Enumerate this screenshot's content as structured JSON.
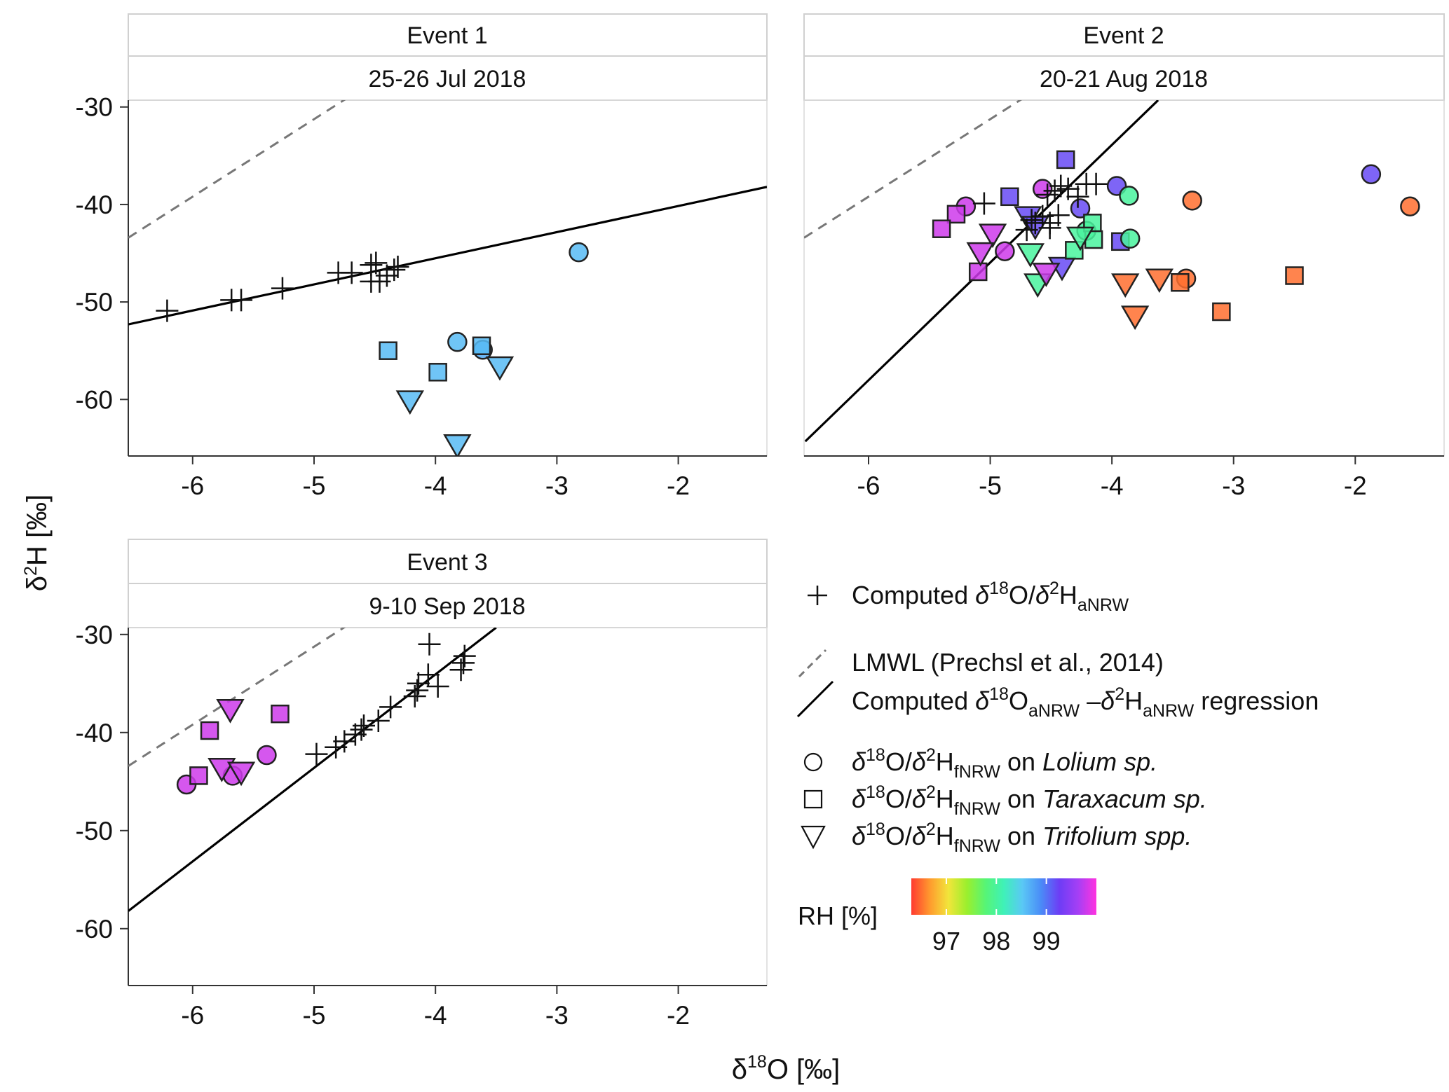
{
  "chart_data": {
    "type": "scatter",
    "xlabel": {
      "prefix": "δ",
      "sup": "18",
      "main": "O [‰]"
    },
    "ylabel": {
      "prefix": "δ",
      "sup": "2",
      "main": "H [‰]"
    },
    "xlim": [
      -6.53,
      -1.27
    ],
    "ylim": [
      -65.8,
      -29.3
    ],
    "xticks": [
      -6,
      -5,
      -4,
      -3,
      -2
    ],
    "yticks": [
      -30,
      -40,
      -50,
      -60
    ],
    "grid": false,
    "lmwl": {
      "slope": 7.95,
      "intercept": 8.5
    },
    "panels": [
      {
        "title": "Event 1",
        "date": "25-26 Jul 2018",
        "regression": {
          "x": [
            -6.53,
            -1.27
          ],
          "y": [
            -52.3,
            -38.2
          ]
        },
        "computed": [
          [
            -6.21,
            -50.9
          ],
          [
            -5.68,
            -49.8
          ],
          [
            -5.6,
            -49.8
          ],
          [
            -5.26,
            -48.6
          ],
          [
            -4.8,
            -47.0
          ],
          [
            -4.69,
            -47.0
          ],
          [
            -4.53,
            -46.2
          ],
          [
            -4.49,
            -46.0
          ],
          [
            -4.53,
            -47.9
          ],
          [
            -4.46,
            -47.9
          ],
          [
            -4.4,
            -47.3
          ],
          [
            -4.34,
            -46.7
          ],
          [
            -4.31,
            -46.4
          ]
        ],
        "observed": [
          {
            "species": "Lolium",
            "x": -2.82,
            "y": -44.9,
            "rh": 98.6
          },
          {
            "species": "Lolium",
            "x": -3.82,
            "y": -54.1,
            "rh": 98.6
          },
          {
            "species": "Lolium",
            "x": -3.61,
            "y": -54.9,
            "rh": 98.7
          },
          {
            "species": "Taraxacum",
            "x": -4.39,
            "y": -55.0,
            "rh": 98.6
          },
          {
            "species": "Taraxacum",
            "x": -3.62,
            "y": -54.5,
            "rh": 98.6
          },
          {
            "species": "Taraxacum",
            "x": -3.98,
            "y": -57.2,
            "rh": 98.6
          },
          {
            "species": "Trifolium",
            "x": -4.21,
            "y": -60.1,
            "rh": 98.6
          },
          {
            "species": "Trifolium",
            "x": -3.47,
            "y": -56.6,
            "rh": 98.6
          },
          {
            "species": "Trifolium",
            "x": -3.82,
            "y": -64.6,
            "rh": 98.6
          }
        ]
      },
      {
        "title": "Event 2",
        "date": "20-21 Aug 2018",
        "regression": {
          "x": [
            -6.52,
            -3.62
          ],
          "y": [
            -64.3,
            -29.3
          ]
        },
        "computed": [
          [
            -5.05,
            -39.9
          ],
          [
            -4.7,
            -42.6
          ],
          [
            -4.66,
            -41.6
          ],
          [
            -4.63,
            -41.9
          ],
          [
            -4.57,
            -41.2
          ],
          [
            -4.51,
            -41.9
          ],
          [
            -4.44,
            -41.1
          ],
          [
            -4.53,
            -39.0
          ],
          [
            -4.47,
            -38.6
          ],
          [
            -4.42,
            -38.1
          ],
          [
            -4.36,
            -38.4
          ],
          [
            -4.21,
            -37.9
          ],
          [
            -4.13,
            -37.9
          ],
          [
            -4.28,
            -39.2
          ],
          [
            -4.51,
            -42.4
          ]
        ],
        "observed": [
          {
            "species": "Lolium",
            "x": -3.34,
            "y": -39.6,
            "rh": 96.5
          },
          {
            "species": "Lolium",
            "x": -1.55,
            "y": -40.2,
            "rh": 96.5
          },
          {
            "species": "Lolium",
            "x": -3.39,
            "y": -47.6,
            "rh": 96.5
          },
          {
            "species": "Taraxacum",
            "x": -3.44,
            "y": -48.0,
            "rh": 96.5
          },
          {
            "species": "Taraxacum",
            "x": -2.5,
            "y": -47.3,
            "rh": 96.5
          },
          {
            "species": "Taraxacum",
            "x": -3.1,
            "y": -51.0,
            "rh": 96.5
          },
          {
            "species": "Trifolium",
            "x": -3.89,
            "y": -48.1,
            "rh": 96.5
          },
          {
            "species": "Trifolium",
            "x": -3.61,
            "y": -47.6,
            "rh": 96.5
          },
          {
            "species": "Trifolium",
            "x": -3.81,
            "y": -51.4,
            "rh": 96.5
          },
          {
            "species": "Lolium",
            "x": -1.87,
            "y": -36.9,
            "rh": 99.2
          },
          {
            "species": "Lolium",
            "x": -3.96,
            "y": -38.1,
            "rh": 99.2
          },
          {
            "species": "Lolium",
            "x": -4.26,
            "y": -40.4,
            "rh": 99.2
          },
          {
            "species": "Taraxacum",
            "x": -4.38,
            "y": -35.4,
            "rh": 99.2
          },
          {
            "species": "Taraxacum",
            "x": -4.84,
            "y": -39.2,
            "rh": 99.2
          },
          {
            "species": "Taraxacum",
            "x": -3.93,
            "y": -43.8,
            "rh": 99.2
          },
          {
            "species": "Trifolium",
            "x": -4.69,
            "y": -41.2,
            "rh": 99.2
          },
          {
            "species": "Trifolium",
            "x": -4.63,
            "y": -42.2,
            "rh": 99.2
          },
          {
            "species": "Trifolium",
            "x": -4.41,
            "y": -46.4,
            "rh": 99.2
          },
          {
            "species": "Lolium",
            "x": -3.86,
            "y": -39.1,
            "rh": 98.0
          },
          {
            "species": "Lolium",
            "x": -4.21,
            "y": -42.7,
            "rh": 98.0
          },
          {
            "species": "Lolium",
            "x": -3.85,
            "y": -43.5,
            "rh": 98.0
          },
          {
            "species": "Taraxacum",
            "x": -4.16,
            "y": -41.9,
            "rh": 98.0
          },
          {
            "species": "Taraxacum",
            "x": -4.15,
            "y": -43.6,
            "rh": 98.0
          },
          {
            "species": "Taraxacum",
            "x": -4.31,
            "y": -44.7,
            "rh": 98.0
          },
          {
            "species": "Trifolium",
            "x": -4.67,
            "y": -45.0,
            "rh": 98.0
          },
          {
            "species": "Trifolium",
            "x": -4.61,
            "y": -48.1,
            "rh": 98.0
          },
          {
            "species": "Trifolium",
            "x": -4.26,
            "y": -43.3,
            "rh": 98.0
          },
          {
            "species": "Lolium",
            "x": -5.2,
            "y": -40.2,
            "rh": 99.8
          },
          {
            "species": "Lolium",
            "x": -4.57,
            "y": -38.4,
            "rh": 99.8
          },
          {
            "species": "Lolium",
            "x": -4.88,
            "y": -44.8,
            "rh": 99.8
          },
          {
            "species": "Taraxacum",
            "x": -5.28,
            "y": -41.0,
            "rh": 99.8
          },
          {
            "species": "Taraxacum",
            "x": -5.4,
            "y": -42.5,
            "rh": 99.8
          },
          {
            "species": "Taraxacum",
            "x": -5.1,
            "y": -46.9,
            "rh": 99.8
          },
          {
            "species": "Trifolium",
            "x": -4.98,
            "y": -43.0,
            "rh": 99.8
          },
          {
            "species": "Trifolium",
            "x": -5.08,
            "y": -44.9,
            "rh": 99.8
          },
          {
            "species": "Trifolium",
            "x": -4.54,
            "y": -47.0,
            "rh": 99.8
          }
        ]
      },
      {
        "title": "Event 3",
        "date": "9-10 Sep 2018",
        "regression": {
          "x": [
            -6.53,
            -3.5
          ],
          "y": [
            -58.2,
            -29.3
          ]
        },
        "computed": [
          [
            -4.98,
            -42.2
          ],
          [
            -4.82,
            -41.5
          ],
          [
            -4.75,
            -40.9
          ],
          [
            -4.66,
            -40.2
          ],
          [
            -4.61,
            -39.7
          ],
          [
            -4.59,
            -39.3
          ],
          [
            -4.47,
            -38.8
          ],
          [
            -4.37,
            -37.4
          ],
          [
            -4.17,
            -36.3
          ],
          [
            -4.15,
            -35.7
          ],
          [
            -4.14,
            -35.0
          ],
          [
            -4.05,
            -31.0
          ],
          [
            -4.06,
            -34.1
          ],
          [
            -3.98,
            -35.3
          ],
          [
            -3.79,
            -33.6
          ],
          [
            -3.77,
            -32.9
          ],
          [
            -3.76,
            -32.2
          ]
        ],
        "observed": [
          {
            "species": "Lolium",
            "x": -6.05,
            "y": -45.3,
            "rh": 99.8
          },
          {
            "species": "Lolium",
            "x": -5.67,
            "y": -44.4,
            "rh": 99.8
          },
          {
            "species": "Lolium",
            "x": -5.39,
            "y": -42.3,
            "rh": 99.8
          },
          {
            "species": "Taraxacum",
            "x": -5.95,
            "y": -44.4,
            "rh": 99.8
          },
          {
            "species": "Taraxacum",
            "x": -5.86,
            "y": -39.8,
            "rh": 99.8
          },
          {
            "species": "Taraxacum",
            "x": -5.28,
            "y": -38.1,
            "rh": 99.8
          },
          {
            "species": "Trifolium",
            "x": -5.69,
            "y": -37.6,
            "rh": 99.8
          },
          {
            "species": "Trifolium",
            "x": -5.76,
            "y": -43.6,
            "rh": 99.8
          },
          {
            "species": "Trifolium",
            "x": -5.6,
            "y": -44.0,
            "rh": 99.8
          }
        ]
      }
    ],
    "legend": {
      "placement": "bottom-right",
      "computed": {
        "text": "Computed",
        "d": "δ",
        "s18": "18",
        "mid": "O/",
        "s2": "2",
        "h": "H",
        "sub": "aNRW"
      },
      "lmwl": "LMWL (Prechsl et al., 2014)",
      "regression": {
        "text": "Computed",
        "d": "δ",
        "s18": "18",
        "o": "O",
        "sub1": "aNRW",
        "dash": " –",
        "s2": "2",
        "h": "H",
        "sub2": "aNRW",
        "tail": " regression"
      },
      "species": [
        {
          "shape": "circle",
          "on": " on ",
          "name": "Lolium sp."
        },
        {
          "shape": "square",
          "on": " on ",
          "name": "Taraxacum sp."
        },
        {
          "shape": "triangle",
          "on": " on ",
          "name": "Trifolium spp."
        }
      ],
      "species_prefix": {
        "d": "δ",
        "s18": "18",
        "mid": "O/",
        "s2": "2",
        "h": "H",
        "sub": "fNRW"
      },
      "colorbar": {
        "title": "RH [%]",
        "range": [
          96.3,
          100.0
        ],
        "ticks": [
          97,
          98,
          99
        ],
        "stops": [
          "#ff3b30",
          "#ff9a2e",
          "#f2e53b",
          "#9bef2d",
          "#57f575",
          "#3ff1b8",
          "#5ac8f5",
          "#4a8cf7",
          "#6d3df5",
          "#a43ff5",
          "#ff33e0"
        ]
      }
    },
    "colors": {
      "lmwl": "#777777",
      "regression": "#000000",
      "marker_edge": "#222222"
    }
  }
}
